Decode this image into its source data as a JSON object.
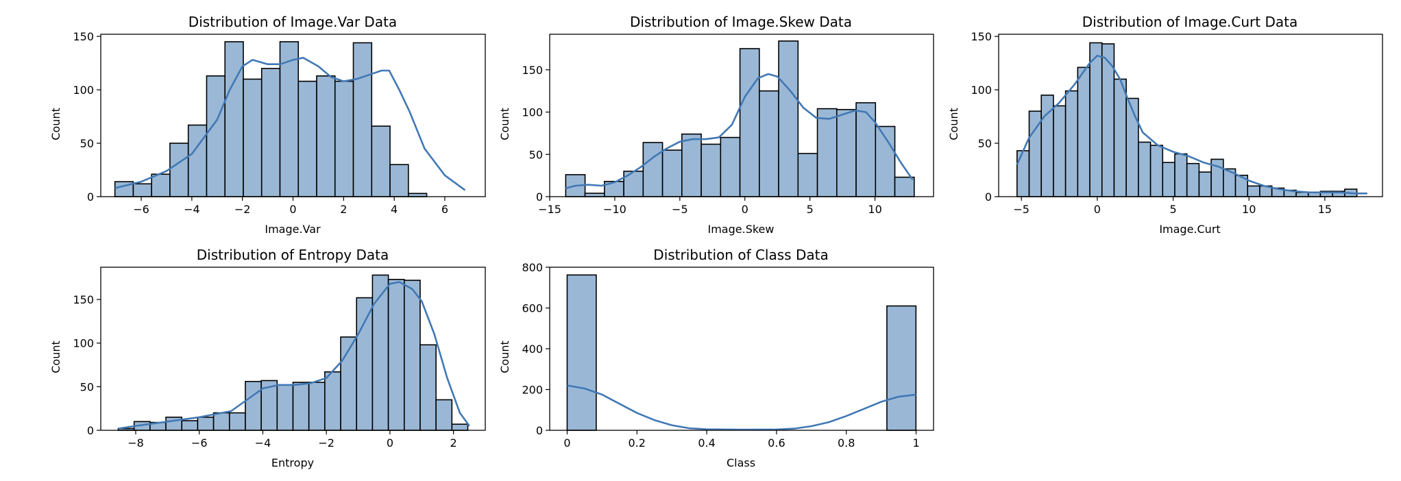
{
  "figure": {
    "panel_order": [
      "var",
      "skew",
      "curt",
      "entropy",
      "class"
    ]
  },
  "colors": {
    "bar_fill": "#9ab8d6",
    "bar_edge": "#000000",
    "kde_line": "#4178b4",
    "axes": "#000000"
  },
  "chart_data": [
    {
      "id": "var",
      "type": "bar",
      "title": "Distribution of Image.Var Data",
      "xlabel": "Image.Var",
      "ylabel": "Count",
      "xlim": [
        -7.6,
        7.6
      ],
      "ylim": [
        0,
        152
      ],
      "xticks": [
        -6,
        -4,
        -2,
        0,
        2,
        4,
        6
      ],
      "yticks": [
        0,
        50,
        100,
        150
      ],
      "bin_start": -7.04,
      "bin_width": 0.725,
      "counts": [
        14,
        12,
        21,
        50,
        67,
        113,
        145,
        110,
        120,
        145,
        108,
        113,
        108,
        144,
        66,
        30,
        3
      ],
      "kde": [
        [
          -7.04,
          8
        ],
        [
          -6,
          14
        ],
        [
          -5,
          24
        ],
        [
          -4,
          40
        ],
        [
          -3,
          72
        ],
        [
          -2.5,
          100
        ],
        [
          -2,
          122
        ],
        [
          -1.6,
          128
        ],
        [
          -1,
          124
        ],
        [
          -0.5,
          124
        ],
        [
          0,
          128
        ],
        [
          0.4,
          130
        ],
        [
          1,
          122
        ],
        [
          1.5,
          112
        ],
        [
          2,
          108
        ],
        [
          2.5,
          110
        ],
        [
          3,
          114
        ],
        [
          3.5,
          118
        ],
        [
          3.8,
          118
        ],
        [
          4.2,
          100
        ],
        [
          4.6,
          80
        ],
        [
          5.2,
          45
        ],
        [
          6,
          20
        ],
        [
          6.8,
          6
        ]
      ]
    },
    {
      "id": "skew",
      "type": "bar",
      "title": "Distribution of Image.Skew Data",
      "xlabel": "Image.Skew",
      "ylabel": "Count",
      "xlim": [
        -15.0,
        14.5
      ],
      "ylim": [
        0,
        192
      ],
      "xticks": [
        -15,
        -10,
        -5,
        0,
        5,
        10
      ],
      "yticks": [
        0,
        50,
        100,
        150
      ],
      "bin_start": -13.77,
      "bin_width": 1.488,
      "counts": [
        26,
        4,
        18,
        30,
        64,
        55,
        74,
        62,
        70,
        175,
        125,
        184,
        51,
        104,
        103,
        111,
        83,
        23
      ],
      "kde": [
        [
          -13.77,
          10
        ],
        [
          -13,
          13
        ],
        [
          -12,
          14
        ],
        [
          -11,
          13
        ],
        [
          -10,
          17
        ],
        [
          -9,
          25
        ],
        [
          -8,
          35
        ],
        [
          -7,
          47
        ],
        [
          -6,
          57
        ],
        [
          -5,
          65
        ],
        [
          -4,
          68
        ],
        [
          -3,
          68
        ],
        [
          -2,
          70
        ],
        [
          -1,
          85
        ],
        [
          0,
          118
        ],
        [
          1,
          140
        ],
        [
          1.8,
          145
        ],
        [
          2.5,
          142
        ],
        [
          3.5,
          125
        ],
        [
          4.5,
          105
        ],
        [
          5.5,
          93
        ],
        [
          6.5,
          92
        ],
        [
          7.5,
          97
        ],
        [
          8.5,
          102
        ],
        [
          9.3,
          100
        ],
        [
          10,
          88
        ],
        [
          11,
          65
        ],
        [
          12,
          40
        ],
        [
          12.9,
          20
        ]
      ]
    },
    {
      "id": "curt",
      "type": "bar",
      "title": "Distribution of Image.Curt Data",
      "xlabel": "Image.Curt",
      "ylabel": "Count",
      "xlim": [
        -6.5,
        18.8
      ],
      "ylim": [
        0,
        152
      ],
      "xticks": [
        -5,
        0,
        5,
        10,
        15
      ],
      "yticks": [
        0,
        50,
        100,
        150
      ],
      "bin_start": -5.29,
      "bin_width": 0.8,
      "counts": [
        43,
        80,
        95,
        85,
        99,
        121,
        144,
        143,
        110,
        92,
        51,
        48,
        32,
        40,
        31,
        23,
        35,
        26,
        20,
        10,
        10,
        8,
        6,
        4,
        4,
        5,
        5,
        7
      ],
      "kde": [
        [
          -5.29,
          30
        ],
        [
          -4.5,
          55
        ],
        [
          -3.5,
          75
        ],
        [
          -2.5,
          88
        ],
        [
          -1.5,
          105
        ],
        [
          -1,
          115
        ],
        [
          -0.5,
          125
        ],
        [
          0,
          132
        ],
        [
          0.5,
          130
        ],
        [
          1,
          122
        ],
        [
          1.5,
          110
        ],
        [
          2,
          92
        ],
        [
          2.5,
          75
        ],
        [
          3,
          60
        ],
        [
          4,
          48
        ],
        [
          5,
          42
        ],
        [
          6,
          38
        ],
        [
          7,
          32
        ],
        [
          8,
          28
        ],
        [
          9,
          22
        ],
        [
          10,
          15
        ],
        [
          11,
          10
        ],
        [
          12,
          7
        ],
        [
          13,
          5
        ],
        [
          14,
          4
        ],
        [
          15,
          4
        ],
        [
          16,
          4
        ],
        [
          17,
          3
        ],
        [
          17.8,
          3
        ]
      ]
    },
    {
      "id": "entropy",
      "type": "bar",
      "title": "Distribution of Entropy Data",
      "xlabel": "Entropy",
      "ylabel": "Count",
      "xlim": [
        -9.1,
        3.0
      ],
      "ylim": [
        0,
        187
      ],
      "xticks": [
        -8,
        -6,
        -4,
        -2,
        0,
        2
      ],
      "yticks": [
        0,
        50,
        100,
        150
      ],
      "bin_start": -8.55,
      "bin_width": 0.5,
      "counts": [
        2,
        10,
        9,
        15,
        11,
        15,
        20,
        20,
        56,
        57,
        52,
        55,
        55,
        67,
        107,
        152,
        178,
        173,
        172,
        98,
        35,
        7
      ],
      "kde": [
        [
          -8.55,
          2
        ],
        [
          -8,
          5
        ],
        [
          -7,
          10
        ],
        [
          -6,
          15
        ],
        [
          -5,
          22
        ],
        [
          -4.5,
          35
        ],
        [
          -4,
          48
        ],
        [
          -3.5,
          52
        ],
        [
          -3,
          52
        ],
        [
          -2.5,
          54
        ],
        [
          -2,
          60
        ],
        [
          -1.5,
          80
        ],
        [
          -1,
          110
        ],
        [
          -0.5,
          145
        ],
        [
          0,
          168
        ],
        [
          0.3,
          170
        ],
        [
          0.7,
          162
        ],
        [
          1,
          148
        ],
        [
          1.4,
          110
        ],
        [
          1.8,
          60
        ],
        [
          2.2,
          20
        ],
        [
          2.5,
          5
        ]
      ]
    },
    {
      "id": "class",
      "type": "bar",
      "title": "Distribution of Class Data",
      "xlabel": "Class",
      "ylabel": "Count",
      "xlim": [
        -0.05,
        1.05
      ],
      "ylim": [
        0,
        800
      ],
      "xticks": [
        0.0,
        0.2,
        0.4,
        0.6,
        0.8,
        1.0
      ],
      "yticks": [
        0,
        200,
        400,
        600,
        800
      ],
      "bin_start": 0.0,
      "bin_width": 0.0833,
      "counts": [
        762,
        0,
        0,
        0,
        0,
        0,
        0,
        0,
        0,
        0,
        0,
        610
      ],
      "kde": [
        [
          0,
          220
        ],
        [
          0.05,
          205
        ],
        [
          0.1,
          175
        ],
        [
          0.15,
          130
        ],
        [
          0.2,
          85
        ],
        [
          0.25,
          50
        ],
        [
          0.3,
          25
        ],
        [
          0.35,
          10
        ],
        [
          0.4,
          5
        ],
        [
          0.5,
          3
        ],
        [
          0.6,
          4
        ],
        [
          0.65,
          8
        ],
        [
          0.7,
          20
        ],
        [
          0.75,
          40
        ],
        [
          0.8,
          70
        ],
        [
          0.85,
          105
        ],
        [
          0.9,
          140
        ],
        [
          0.95,
          165
        ],
        [
          1.0,
          175
        ]
      ]
    }
  ]
}
